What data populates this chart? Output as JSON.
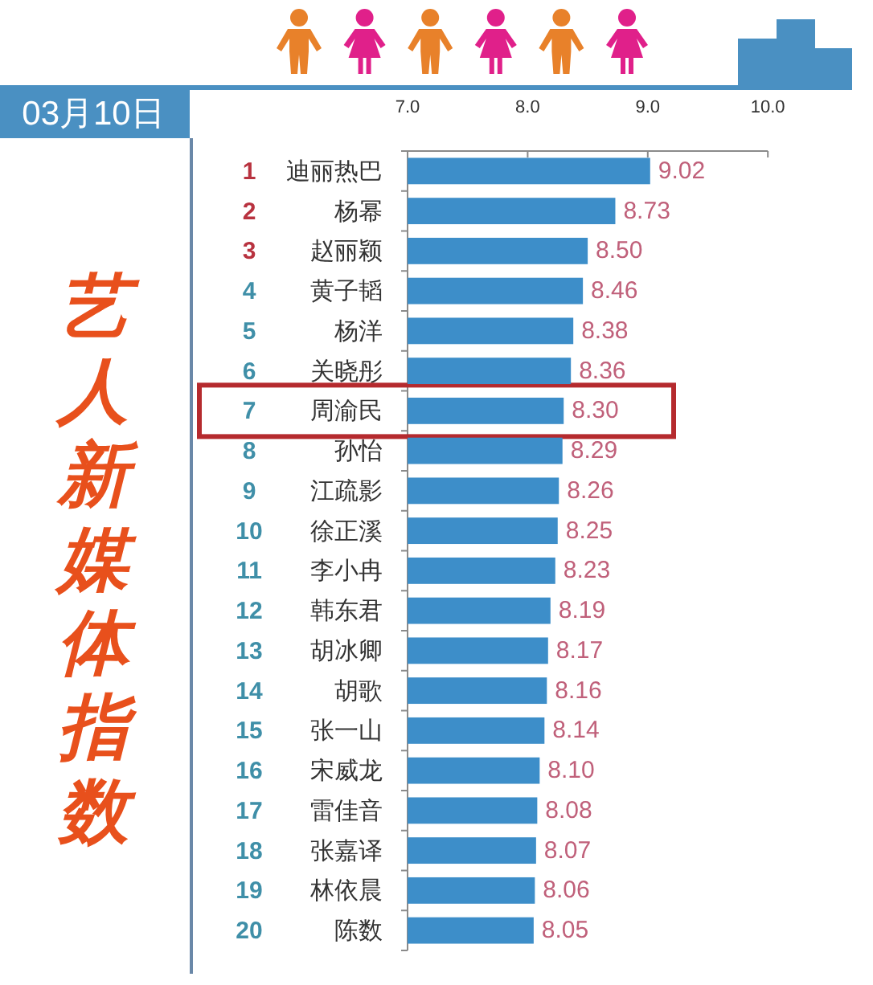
{
  "chart_data": {
    "type": "bar",
    "orientation": "horizontal",
    "title": "艺人新媒体指数",
    "subtitle": "03月10日",
    "categories": [
      "1 迪丽热巴",
      "2 杨幂",
      "3 赵丽颖",
      "4 黄子韬",
      "5 杨洋",
      "6 关晓彤",
      "7 周渝民",
      "8 孙怡",
      "9 江疏影",
      "10 徐正溪",
      "11 李小冉",
      "12 韩东君",
      "13 胡冰卿",
      "14 胡歌",
      "15 张一山",
      "16 宋威龙",
      "17 雷佳音",
      "18 张嘉译",
      "19 林依晨",
      "20 陈数"
    ],
    "values": [
      9.02,
      8.73,
      8.5,
      8.46,
      8.38,
      8.36,
      8.3,
      8.29,
      8.26,
      8.25,
      8.23,
      8.19,
      8.17,
      8.16,
      8.14,
      8.1,
      8.08,
      8.07,
      8.06,
      8.05
    ],
    "value_labels": [
      "9.02",
      "8.73",
      "8.50",
      "8.46",
      "8.38",
      "8.36",
      "8.30",
      "8.29",
      "8.26",
      "8.25",
      "8.23",
      "8.19",
      "8.17",
      "8.16",
      "8.14",
      "8.10",
      "8.08",
      "8.07",
      "8.06",
      "8.05"
    ],
    "color": "#3d8ec9",
    "xlim": [
      7.0,
      10.0
    ],
    "xticks": [
      {
        "value": 7,
        "label": "7.0"
      },
      {
        "value": 8,
        "label": "8.0"
      },
      {
        "value": 9,
        "label": "9.0"
      },
      {
        "value": 10,
        "label": "10.0"
      }
    ]
  }
}
